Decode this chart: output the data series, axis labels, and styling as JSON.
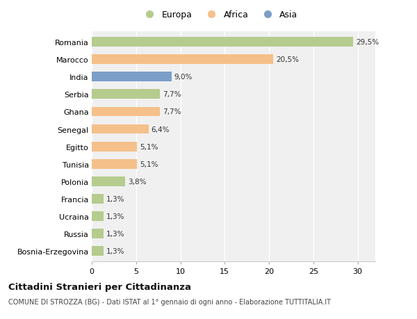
{
  "countries": [
    "Romania",
    "Marocco",
    "India",
    "Serbia",
    "Ghana",
    "Senegal",
    "Egitto",
    "Tunisia",
    "Polonia",
    "Francia",
    "Ucraina",
    "Russia",
    "Bosnia-Erzegovina"
  ],
  "values": [
    29.5,
    20.5,
    9.0,
    7.7,
    7.7,
    6.4,
    5.1,
    5.1,
    3.8,
    1.3,
    1.3,
    1.3,
    1.3
  ],
  "labels": [
    "29,5%",
    "20,5%",
    "9,0%",
    "7,7%",
    "7,7%",
    "6,4%",
    "5,1%",
    "5,1%",
    "3,8%",
    "1,3%",
    "1,3%",
    "1,3%",
    "1,3%"
  ],
  "continents": [
    "Europa",
    "Africa",
    "Asia",
    "Europa",
    "Africa",
    "Africa",
    "Africa",
    "Africa",
    "Europa",
    "Europa",
    "Europa",
    "Europa",
    "Europa"
  ],
  "colors": {
    "Europa": "#b5cc8e",
    "Africa": "#f5c08a",
    "Asia": "#7b9ec9"
  },
  "title": "Cittadini Stranieri per Cittadinanza",
  "subtitle": "COMUNE DI STROZZA (BG) - Dati ISTAT al 1° gennaio di ogni anno - Elaborazione TUTTITALIA.IT",
  "xlim": [
    0,
    32
  ],
  "xticks": [
    0,
    5,
    10,
    15,
    20,
    25,
    30
  ],
  "background_color": "#ffffff",
  "plot_background": "#f0f0f0"
}
